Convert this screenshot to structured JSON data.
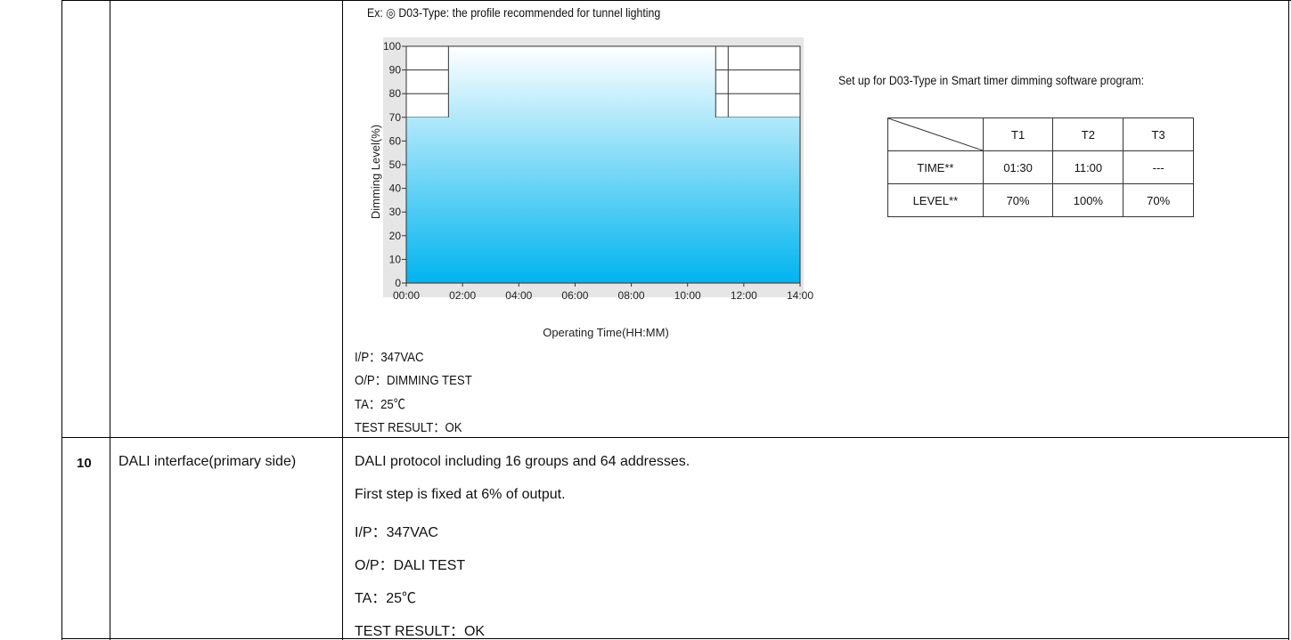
{
  "chart_section": {
    "chart_title": "Ex: ◎ D03-Type: the profile recommended for tunnel lighting",
    "setup_title": "Set up for D03-Type in Smart timer dimming software program:",
    "setup_table": {
      "headers": [
        "",
        "T1",
        "T2",
        "T3"
      ],
      "rows": [
        {
          "label": "TIME**",
          "values": [
            "01:30",
            "11:00",
            "---"
          ]
        },
        {
          "label": "LEVEL**",
          "values": [
            "70%",
            "100%",
            "70%"
          ]
        }
      ]
    },
    "test_lines": {
      "ip": "I/P：347VAC",
      "op": "O/P：DIMMING TEST",
      "ta": "TA：25℃",
      "result": "TEST RESULT：OK"
    }
  },
  "chart_data": {
    "type": "area",
    "title": "",
    "xlabel": "Operating Time(HH:MM)",
    "ylabel": "Dimming Level(%)",
    "x_ticks": [
      "00:00",
      "02:00",
      "04:00",
      "06:00",
      "08:00",
      "10:00",
      "12:00",
      "14:00"
    ],
    "y_ticks": [
      "0",
      "10",
      "20",
      "30",
      "40",
      "50",
      "60",
      "70",
      "80",
      "90",
      "100"
    ],
    "xlim": [
      "00:00",
      "14:00"
    ],
    "ylim": [
      0,
      100
    ],
    "series": [
      {
        "x": [
          "00:00",
          "01:30",
          "01:30",
          "11:00",
          "11:00",
          "14:00"
        ],
        "y": [
          70,
          70,
          100,
          100,
          70,
          70
        ]
      }
    ],
    "fill_color_top": "#ffffff",
    "fill_color_bottom": "#00b4ef",
    "background": "#e6e6e6"
  },
  "dali_section": {
    "number": "10",
    "title": "DALI interface(primary side)",
    "lines": [
      "DALI protocol including 16 groups and 64 addresses.",
      "First step is fixed at 6% of output.",
      "I/P：347VAC",
      "O/P：DALI TEST",
      "TA：25℃",
      "TEST RESULT：OK"
    ]
  }
}
